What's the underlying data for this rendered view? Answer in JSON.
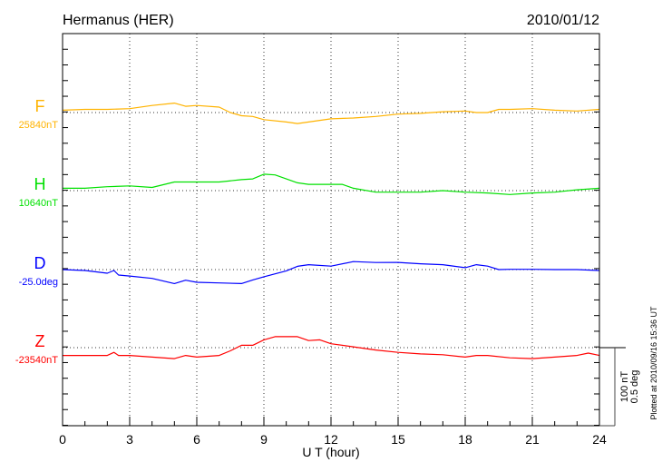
{
  "header": {
    "station": "Hermanus (HER)",
    "date": "2010/01/12"
  },
  "scale_bar": {
    "nt_label": "100 nT",
    "deg_label": "0.5 deg"
  },
  "footer": {
    "plotted_at": "Plotted at 2010/09/16 15:36 UT"
  },
  "chart_data": {
    "type": "line",
    "title": "Hermanus (HER)",
    "xlabel": "U T (hour)",
    "xlim": [
      0,
      24
    ],
    "xticks": [
      "0",
      "3",
      "6",
      "9",
      "12",
      "15",
      "18",
      "21",
      "24"
    ],
    "grid": "dotted vertical at 3-hour marks, dotted baseline per trace",
    "scale": {
      "nT_per_bar": 100,
      "deg_per_bar": 0.5
    },
    "series": [
      {
        "name": "F",
        "baseline_label": "25840nT",
        "baseline": 25840,
        "unit": "nT",
        "color": "#ffb300",
        "x": [
          0,
          1,
          2,
          3,
          4,
          5,
          5.5,
          6,
          7,
          7.5,
          8,
          8.5,
          9,
          10,
          10.5,
          11,
          12,
          13,
          14,
          15,
          16,
          17,
          18,
          18.5,
          19,
          19.5,
          20,
          21,
          22,
          23,
          24
        ],
        "y": [
          25843,
          25844,
          25844,
          25845,
          25849,
          25852,
          25848,
          25849,
          25847,
          25840,
          25836,
          25835,
          25831,
          25828,
          25826,
          25828,
          25832,
          25833,
          25835,
          25838,
          25839,
          25841,
          25842,
          25840,
          25840,
          25844,
          25844,
          25845,
          25843,
          25842,
          25844
        ]
      },
      {
        "name": "H",
        "baseline_label": "10640nT",
        "baseline": 10640,
        "unit": "nT",
        "color": "#00e000",
        "x": [
          0,
          1,
          2,
          3,
          4,
          5,
          6,
          7,
          8,
          8.5,
          9,
          9.5,
          10,
          10.5,
          11,
          12,
          12.5,
          13,
          14,
          15,
          16,
          17,
          18,
          19,
          20,
          21,
          22,
          23,
          24
        ],
        "y": [
          10643,
          10643,
          10645,
          10646,
          10644,
          10651,
          10651,
          10651,
          10654,
          10655,
          10661,
          10660,
          10655,
          10650,
          10648,
          10648,
          10648,
          10643,
          10638,
          10638,
          10638,
          10640,
          10638,
          10637,
          10635,
          10637,
          10638,
          10641,
          10643
        ]
      },
      {
        "name": "D",
        "baseline_label": "-25.0deg",
        "baseline": -25.0,
        "unit": "deg",
        "color": "#0000ff",
        "x": [
          0,
          1,
          2,
          2.3,
          2.5,
          3,
          4,
          5,
          5.5,
          6,
          7,
          8,
          8.5,
          9,
          10,
          10.5,
          11,
          12,
          13,
          14,
          15,
          16,
          17,
          18,
          18.5,
          19,
          19.5,
          20,
          21,
          22,
          23,
          24
        ],
        "y": [
          -25.0,
          -25.006,
          -25.023,
          -25.006,
          -25.035,
          -25.041,
          -25.056,
          -25.089,
          -25.068,
          -25.081,
          -25.085,
          -25.089,
          -25.066,
          -25.046,
          -25.008,
          -24.979,
          -24.969,
          -24.978,
          -24.949,
          -24.955,
          -24.954,
          -24.963,
          -24.969,
          -24.988,
          -24.969,
          -24.978,
          -25.0,
          -24.998,
          -24.998,
          -25.0,
          -25.0,
          -25.006
        ]
      },
      {
        "name": "Z",
        "baseline_label": "-23540nT",
        "baseline": -23540,
        "unit": "nT",
        "color": "#ff0000",
        "x": [
          0,
          1,
          2,
          2.3,
          2.5,
          3,
          4,
          5,
          5.5,
          6,
          7,
          7.5,
          8,
          8.5,
          9,
          9.5,
          10,
          10.5,
          11,
          11.5,
          12,
          13,
          14,
          15,
          16,
          17,
          18,
          18.5,
          19,
          20,
          21,
          22,
          23,
          23.5,
          24
        ],
        "y": [
          -23550,
          -23550,
          -23550,
          -23546,
          -23550,
          -23550,
          -23552,
          -23554,
          -23550,
          -23552,
          -23550,
          -23544,
          -23537,
          -23537,
          -23530,
          -23526,
          -23526,
          -23526,
          -23531,
          -23530,
          -23535,
          -23539,
          -23543,
          -23546,
          -23548,
          -23549,
          -23552,
          -23550,
          -23550,
          -23553,
          -23554,
          -23552,
          -23550,
          -23547,
          -23550
        ]
      }
    ]
  }
}
